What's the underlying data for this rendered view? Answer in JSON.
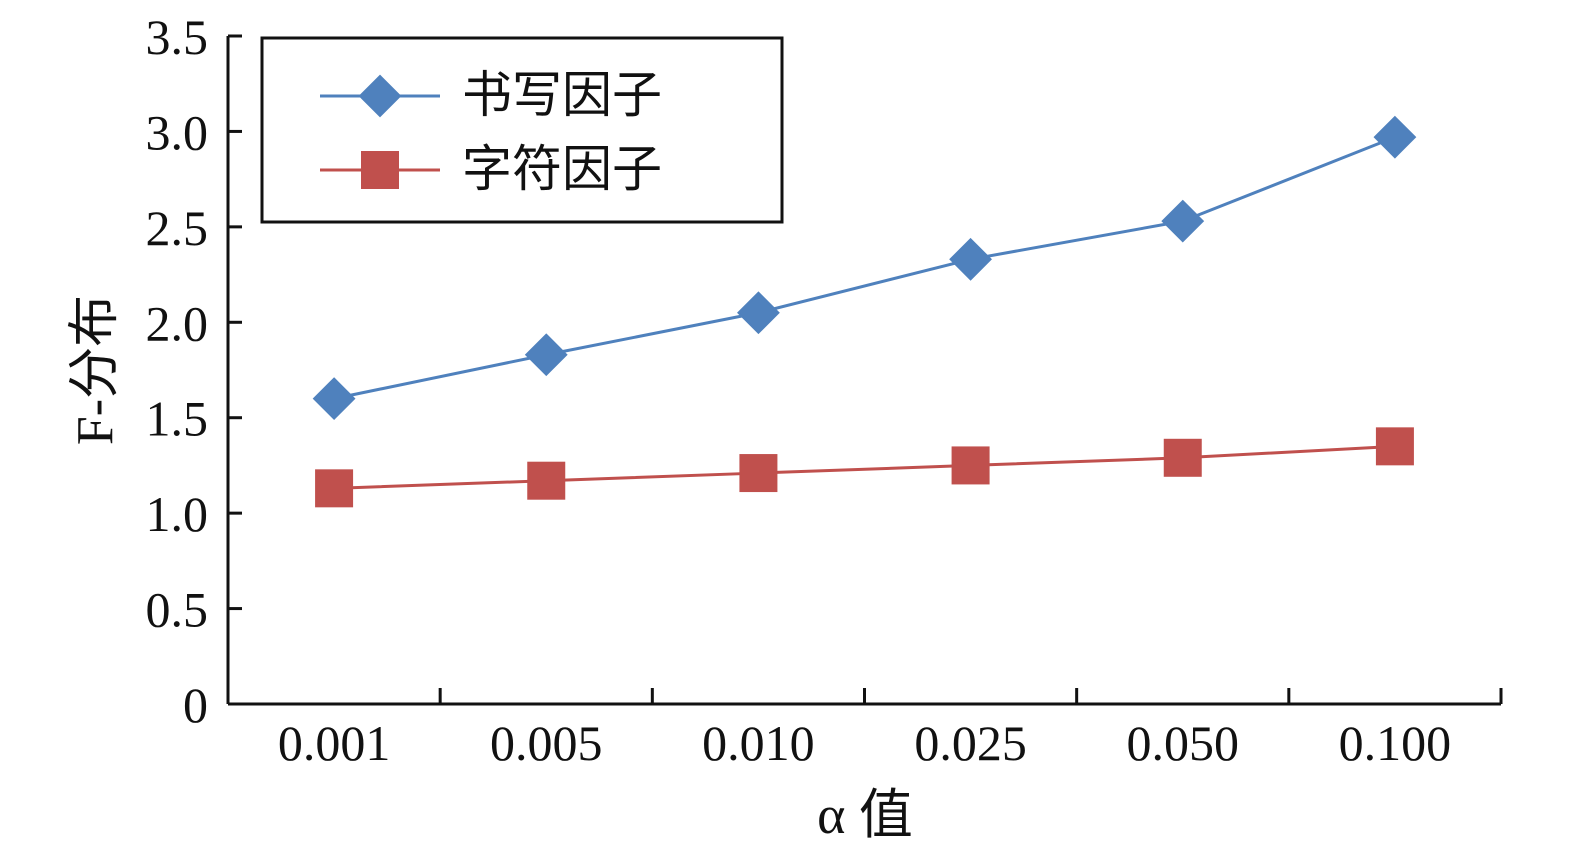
{
  "chart_data": {
    "type": "line",
    "categories": [
      "0.001",
      "0.005",
      "0.010",
      "0.025",
      "0.050",
      "0.100"
    ],
    "series": [
      {
        "name": "书写因子",
        "values": [
          1.6,
          1.83,
          2.05,
          2.33,
          2.53,
          2.97
        ],
        "color": "#4f81bd",
        "marker": "diamond"
      },
      {
        "name": "字符因子",
        "values": [
          1.13,
          1.17,
          1.21,
          1.25,
          1.29,
          1.35
        ],
        "color": "#c0504d",
        "marker": "square"
      }
    ],
    "xlabel": "α 值",
    "ylabel": "F-分布",
    "ylim": [
      0,
      3.5
    ],
    "yticks": [
      "0",
      "0.5",
      "1.0",
      "1.5",
      "2.0",
      "2.5",
      "3.0",
      "3.5"
    ],
    "grid": false,
    "legend_position": "top-left"
  }
}
